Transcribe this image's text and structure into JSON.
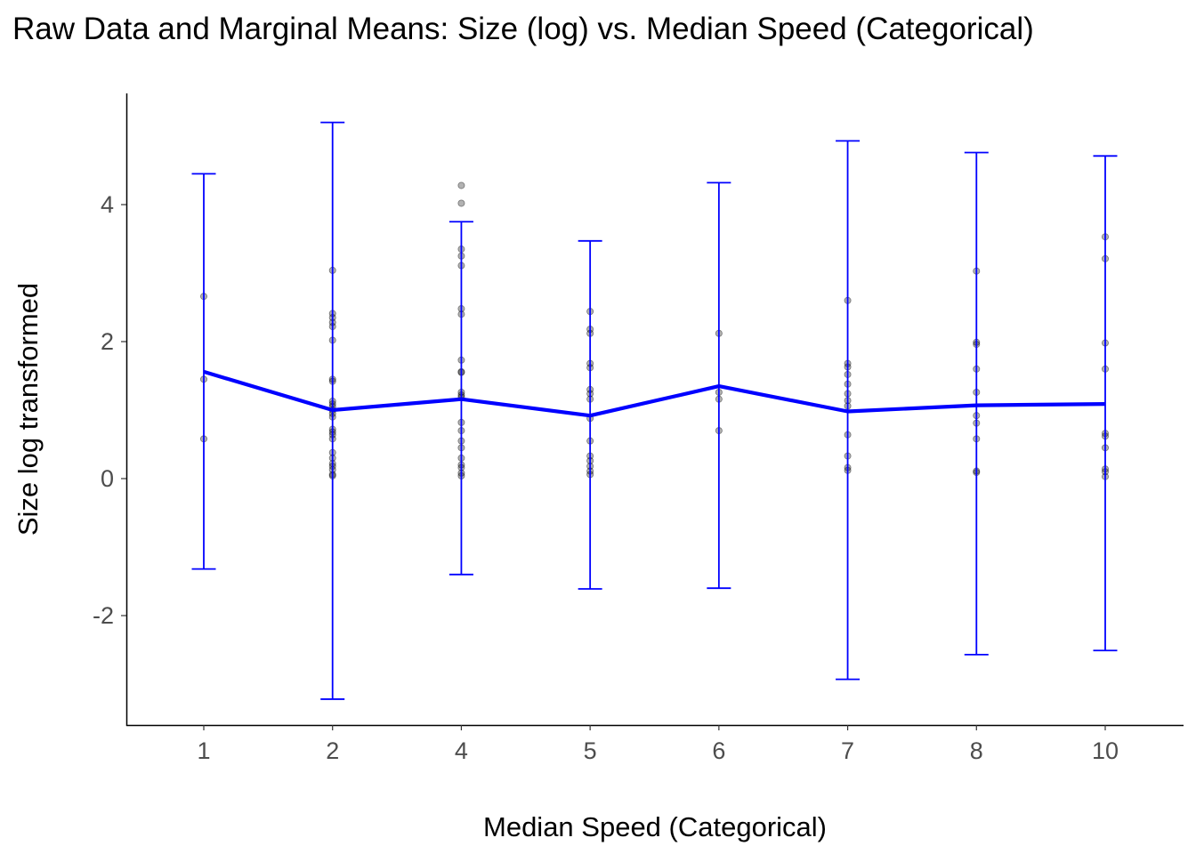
{
  "chart_data": {
    "type": "line",
    "title": "Raw Data and Marginal Means: Size (log) vs. Median Speed (Categorical)",
    "xlabel": "Median Speed (Categorical)",
    "ylabel": "Size log transformed",
    "categories": [
      "1",
      "2",
      "4",
      "5",
      "6",
      "7",
      "8",
      "10"
    ],
    "y_ticks": [
      "-2",
      "0",
      "2",
      "4"
    ],
    "ylim": [
      -3.6,
      5.6
    ],
    "grid": false,
    "legend": "none",
    "colors": {
      "mean_line": "#0000ff",
      "error_bar": "#0000ff",
      "raw_points": "#000000"
    },
    "series": [
      {
        "type": "line_with_errorbars",
        "means": [
          1.56,
          1.0,
          1.16,
          0.92,
          1.35,
          0.98,
          1.07,
          1.09
        ],
        "lower": [
          -1.32,
          -3.22,
          -1.4,
          -1.61,
          -1.6,
          -2.93,
          -2.57,
          -2.51
        ],
        "upper": [
          4.45,
          5.2,
          3.75,
          3.47,
          4.32,
          4.93,
          4.76,
          4.71
        ]
      },
      {
        "type": "scatter",
        "points": [
          [
            [
              "1"
            ],
            [
              2.66,
              1.45,
              0.58
            ]
          ],
          [
            [
              "2"
            ],
            [
              3.04,
              2.41,
              2.35,
              2.28,
              2.22,
              2.02,
              1.45,
              1.42,
              1.13,
              1.09,
              1.05,
              1.0,
              0.95,
              0.9,
              0.72,
              0.68,
              0.64,
              0.58,
              0.38,
              0.3,
              0.22,
              0.18,
              0.13,
              0.06,
              0.04
            ]
          ],
          [
            [
              "4"
            ],
            [
              4.28,
              4.02,
              3.35,
              3.25,
              3.11,
              2.48,
              2.4,
              1.73,
              1.56,
              1.55,
              1.26,
              1.22,
              1.19,
              0.82,
              0.7,
              0.55,
              0.45,
              0.3,
              0.2,
              0.16,
              0.08,
              0.04
            ]
          ],
          [
            [
              "5"
            ],
            [
              2.44,
              2.18,
              2.12,
              1.68,
              1.62,
              1.3,
              1.24,
              1.16,
              0.88,
              0.55,
              0.33,
              0.26,
              0.18,
              0.11,
              0.06
            ]
          ],
          [
            [
              "6"
            ],
            [
              2.12,
              1.26,
              1.16,
              0.7
            ]
          ],
          [
            [
              "7"
            ],
            [
              2.6,
              1.68,
              1.63,
              1.52,
              1.38,
              1.24,
              1.14,
              1.06,
              0.64,
              0.33,
              0.16,
              0.12
            ]
          ],
          [
            [
              "8"
            ],
            [
              3.03,
              1.99,
              1.96,
              1.6,
              1.26,
              0.92,
              0.81,
              0.58,
              0.11,
              0.09
            ]
          ],
          [
            [
              "10"
            ],
            [
              3.53,
              3.21,
              1.98,
              1.6,
              0.66,
              0.62,
              0.45,
              0.14,
              0.1,
              0.03
            ]
          ]
        ]
      }
    ]
  }
}
